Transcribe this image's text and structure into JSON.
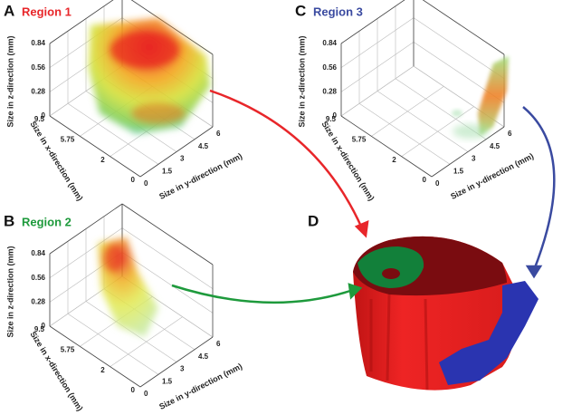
{
  "panels": [
    {
      "letter": "A",
      "title": "Region 1",
      "z_axis_label": "Size in z-direction (mm)",
      "x_axis_label": "Size in x-direction (mm)",
      "y_axis_label": "Size in y-direction (mm)",
      "z_ticks": [
        "0",
        "0.28",
        "0.56",
        "0.84"
      ],
      "x_ticks": [
        "9.5",
        "5.75",
        "2",
        "0"
      ],
      "y_ticks": [
        "0",
        "1.5",
        "3",
        "4.5",
        "6"
      ]
    },
    {
      "letter": "B",
      "title": "Region 2",
      "z_axis_label": "Size in z-direction (mm)",
      "x_axis_label": "Size in x-direction (mm)",
      "y_axis_label": "Size in y-direction (mm)",
      "z_ticks": [
        "0",
        "0.28",
        "0.56",
        "0.84"
      ],
      "x_ticks": [
        "9.5",
        "5.75",
        "2",
        "0"
      ],
      "y_ticks": [
        "0",
        "1.5",
        "3",
        "4.5",
        "6"
      ]
    },
    {
      "letter": "C",
      "title": "Region 3",
      "z_axis_label": "Size in z-direction (mm)",
      "x_axis_label": "Size in x-direction (mm)",
      "y_axis_label": "Size in y-direction (mm)",
      "z_ticks": [
        "0",
        "0.28",
        "0.56",
        "0.84"
      ],
      "x_ticks": [
        "9.5",
        "5.75",
        "2",
        "0"
      ],
      "y_ticks": [
        "0",
        "1.5",
        "3",
        "4.5",
        "6"
      ]
    }
  ],
  "panel_d": {
    "letter": "D"
  }
}
